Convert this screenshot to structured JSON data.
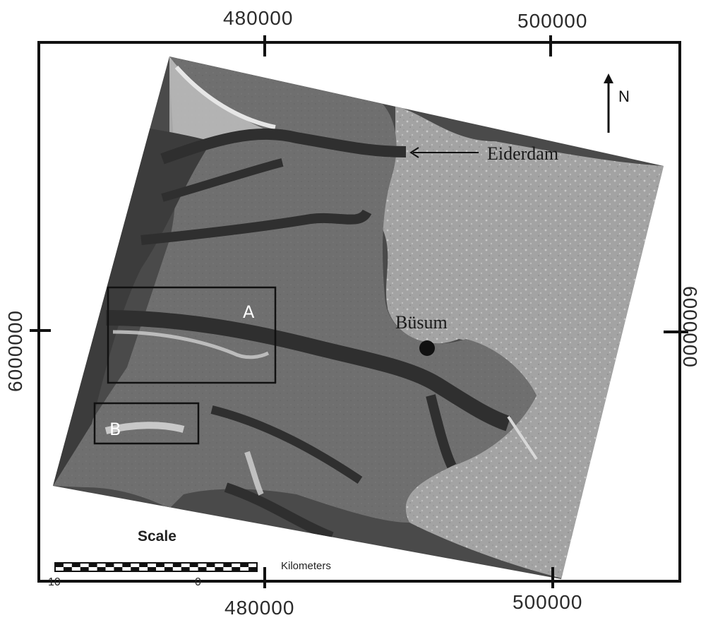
{
  "coordinates": {
    "top": [
      "480000",
      "500000"
    ],
    "bottom": [
      "480000",
      "500000"
    ],
    "left": "6000000",
    "right": "6000000"
  },
  "north_arrow": {
    "label": "N",
    "icon": "north-arrow-icon"
  },
  "places": {
    "eiderdam": "Eiderdam",
    "busum": "Büsum"
  },
  "study_areas": [
    {
      "label": "A"
    },
    {
      "label": "B"
    }
  ],
  "scale_bar": {
    "title": "Scale",
    "unit": "Kilometers",
    "ticks": [
      "10",
      "0"
    ]
  },
  "colors": {
    "frame": "#111111",
    "water_dark": "#3a3a3a",
    "land": "#9a9a9a",
    "tidal_flat": "#6e6e6e",
    "box_border": "#111111"
  }
}
